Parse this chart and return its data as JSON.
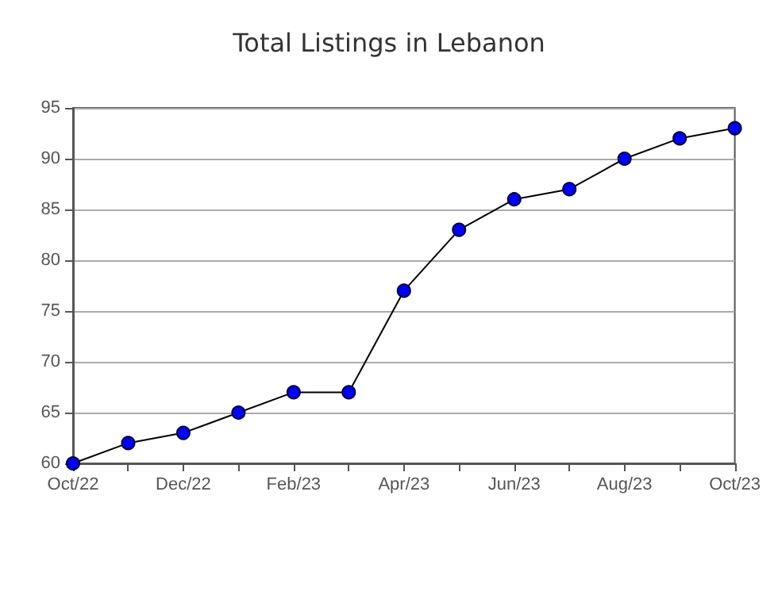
{
  "chart_data": {
    "type": "line",
    "title": "Total Listings in Lebanon",
    "categories": [
      "Oct/22",
      null,
      "Dec/22",
      null,
      "Feb/23",
      null,
      "Apr/23",
      null,
      "Jun/23",
      null,
      "Aug/23",
      null,
      "Oct/23"
    ],
    "series": [
      {
        "color": "#000000",
        "values": [
          60,
          62,
          63,
          65,
          67,
          67,
          77,
          83,
          86,
          87,
          90,
          92,
          93
        ]
      }
    ],
    "ylim": [
      60,
      95
    ],
    "yticks": [
      60,
      65,
      70,
      75,
      80,
      85,
      90,
      95
    ],
    "grid": "y",
    "marker": "circle",
    "line_style": "solid"
  }
}
